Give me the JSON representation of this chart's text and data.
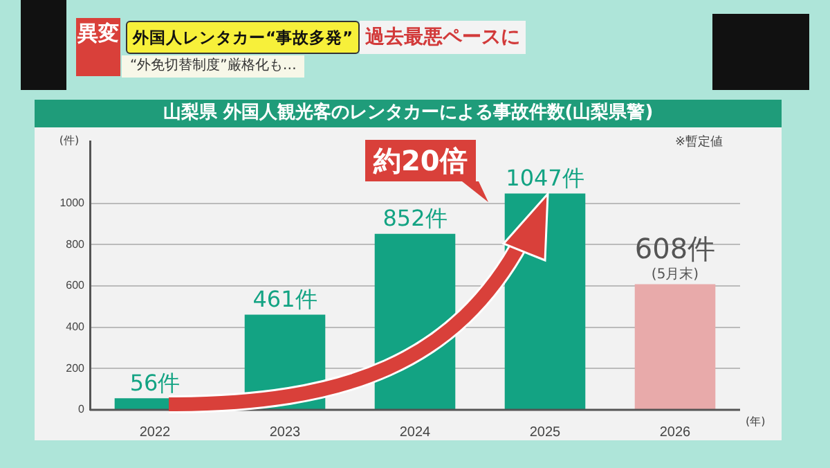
{
  "chart_data": {
    "type": "bar",
    "title": "山梨県 外国人観光客のレンタカーによる事故件数(山梨県警)",
    "ylabel": "(件)",
    "xlabel": "(年)",
    "categories": [
      "2022",
      "2023",
      "2024",
      "2025",
      "2026"
    ],
    "values": [
      56,
      461,
      852,
      1047,
      608
    ],
    "colors": [
      "#13a383",
      "#13a383",
      "#13a383",
      "#13a383",
      "#e8aaaa"
    ],
    "value_labels": [
      "56件",
      "461件",
      "852件",
      "1047件",
      "608件"
    ],
    "ylim": [
      0,
      1300
    ],
    "yticks": [
      0,
      200,
      400,
      600,
      800,
      1000
    ],
    "grid": "y",
    "legend": false,
    "annotations": [
      "異変",
      "外国人レンタカー“事故多発”",
      "過去最悪ペースに",
      "“外免切替制度”厳格化も…",
      "※暫定値",
      "約20倍",
      {
        "text": "(5月末)",
        "x": "2026",
        "y": 608
      }
    ]
  }
}
